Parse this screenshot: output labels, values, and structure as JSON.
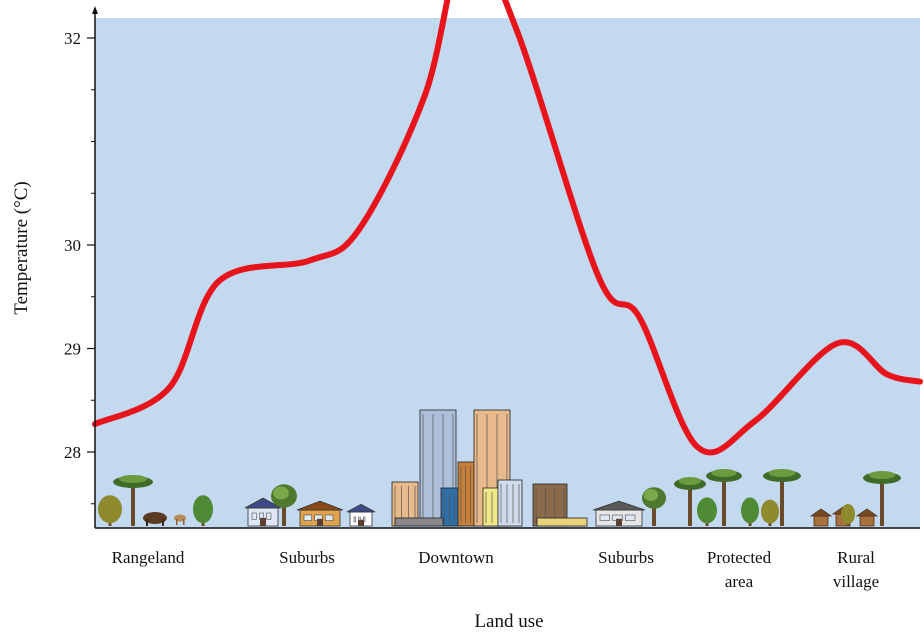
{
  "chart_data": {
    "type": "line",
    "title": "",
    "xlabel": "Land use",
    "ylabel": "Temperature (°C)",
    "y_ticks": [
      {
        "value": 28,
        "label": "28"
      },
      {
        "value": 29,
        "label": "29"
      },
      {
        "value": 30,
        "label": "30"
      },
      {
        "value": 32,
        "label": "32"
      }
    ],
    "categories": [
      {
        "lines": [
          "Rangeland"
        ]
      },
      {
        "lines": [
          "Suburbs"
        ]
      },
      {
        "lines": [
          "Downtown"
        ]
      },
      {
        "lines": [
          "Suburbs"
        ]
      },
      {
        "lines": [
          "Protected",
          "area"
        ]
      },
      {
        "lines": [
          "Rural",
          "village"
        ]
      }
    ],
    "series": [
      {
        "color": "#e8141c",
        "points": [
          {
            "pos": 0.0,
            "value": 28.27
          },
          {
            "pos": 0.09,
            "value": 28.62
          },
          {
            "pos": 0.15,
            "value": 29.65
          },
          {
            "pos": 0.26,
            "value": 29.85
          },
          {
            "pos": 0.32,
            "value": 30.15
          },
          {
            "pos": 0.4,
            "value": 31.45
          },
          {
            "pos": 0.45,
            "value": 32.95
          },
          {
            "pos": 0.51,
            "value": 32.1
          },
          {
            "pos": 0.61,
            "value": 29.7
          },
          {
            "pos": 0.66,
            "value": 29.3
          },
          {
            "pos": 0.73,
            "value": 28.05
          },
          {
            "pos": 0.8,
            "value": 28.3
          },
          {
            "pos": 0.9,
            "value": 29.05
          },
          {
            "pos": 0.96,
            "value": 28.75
          },
          {
            "pos": 1.0,
            "value": 28.68
          }
        ]
      }
    ],
    "grid": false,
    "background_color": "#c3d9ef",
    "illustrations": [
      "trees",
      "animals",
      "houses",
      "skyscrapers",
      "huts"
    ]
  }
}
